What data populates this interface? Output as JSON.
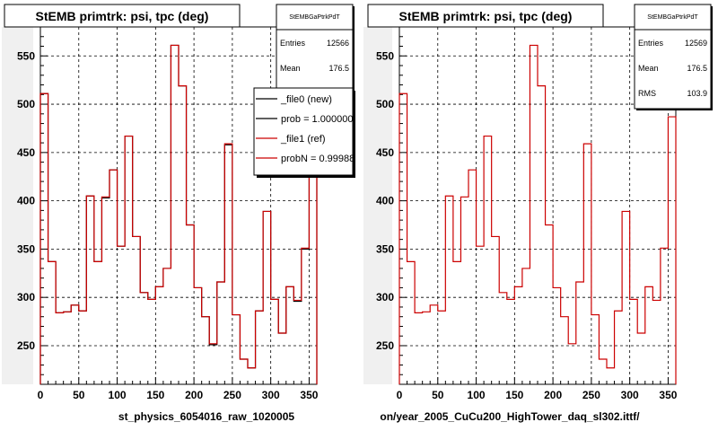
{
  "chart_data": [
    {
      "type": "histogram",
      "title": "StEMB primtrk: psi, tpc (deg)",
      "xlabel": "st_physics_6054016_raw_1020005",
      "ylabel": "",
      "xlim": [
        0,
        360
      ],
      "ylim": [
        210,
        580
      ],
      "x_ticks": [
        0,
        50,
        100,
        150,
        200,
        250,
        300,
        350
      ],
      "y_ticks": [
        250,
        300,
        350,
        400,
        450,
        500,
        550
      ],
      "grid": true,
      "bin_width": 10,
      "series": [
        {
          "name": "_file0 (new)",
          "color": "#000000",
          "values": [
            511,
            337,
            284,
            285,
            292,
            286,
            405,
            337,
            403,
            432,
            353,
            467,
            363,
            305,
            298,
            311,
            330,
            561,
            519,
            375,
            310,
            280,
            251,
            316,
            458,
            282,
            236,
            227,
            286,
            389,
            298,
            263,
            311,
            296,
            350,
            487
          ]
        },
        {
          "name": "_file1 (ref)",
          "color": "#cc0000",
          "values": [
            511,
            337,
            284,
            285,
            292,
            286,
            405,
            337,
            404,
            432,
            353,
            467,
            363,
            305,
            298,
            311,
            330,
            561,
            519,
            375,
            310,
            280,
            252,
            316,
            459,
            282,
            236,
            227,
            286,
            389,
            298,
            263,
            311,
            297,
            351,
            487
          ]
        }
      ],
      "stats": {
        "header": "StEMBGaPtrkPdT",
        "rows": [
          {
            "label": "Entries",
            "value": "12566"
          },
          {
            "label": "Mean",
            "value": "176.5"
          }
        ]
      },
      "legend": {
        "placement": "top-right",
        "items": [
          {
            "text": "_file0 (new)",
            "color": "#000000"
          },
          {
            "text": "prob = 1.000000",
            "color": "#000000"
          },
          {
            "text": "_file1 (ref)",
            "color": "#cc0000"
          },
          {
            "text": "probN = 0.99988",
            "color": "#cc0000"
          }
        ]
      }
    },
    {
      "type": "histogram",
      "title": "StEMB primtrk: psi, tpc (deg)",
      "xlabel": "on/year_2005_CuCu200_HighTower_daq_sl302.ittf/",
      "ylabel": "",
      "xlim": [
        0,
        360
      ],
      "ylim": [
        210,
        580
      ],
      "x_ticks": [
        0,
        50,
        100,
        150,
        200,
        250,
        300,
        350
      ],
      "y_ticks": [
        250,
        300,
        350,
        400,
        450,
        500,
        550
      ],
      "grid": true,
      "bin_width": 10,
      "series": [
        {
          "name": "",
          "color": "#cc0000",
          "values": [
            511,
            337,
            284,
            285,
            292,
            286,
            405,
            337,
            404,
            432,
            353,
            467,
            363,
            305,
            298,
            311,
            330,
            561,
            519,
            375,
            310,
            280,
            252,
            316,
            459,
            282,
            236,
            227,
            286,
            389,
            298,
            263,
            311,
            297,
            351,
            487
          ]
        }
      ],
      "stats": {
        "header": "StEMBGaPtrkPdT",
        "rows": [
          {
            "label": "Entries",
            "value": "12569"
          },
          {
            "label": "Mean",
            "value": "176.5"
          },
          {
            "label": "RMS",
            "value": "103.9"
          }
        ]
      },
      "legend": null
    }
  ]
}
